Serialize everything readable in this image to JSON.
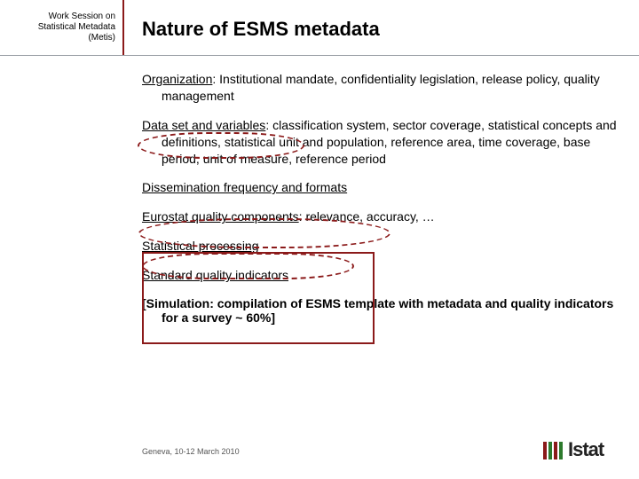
{
  "header": {
    "event_line1": "Work Session on",
    "event_line2": "Statistical Metadata",
    "event_line3": "(Metis)",
    "title": "Nature of ESMS metadata"
  },
  "items": [
    {
      "label": "Organization",
      "sep": ": ",
      "text": "Institutional mandate, confidentiality legislation, release policy, quality management"
    },
    {
      "label": "Data set and variables",
      "sep": ": ",
      "text": "classification system, sector coverage, statistical concepts and definitions, statistical unit and population, reference area, time coverage, base period, unit of measure, reference period"
    },
    {
      "label": "Dissemination frequency and formats",
      "sep": "",
      "text": ""
    },
    {
      "label": "Eurostat quality components",
      "sep": ": ",
      "text": "relevance, accuracy, …"
    },
    {
      "label": "Statistical processing",
      "sep": "",
      "text": ""
    },
    {
      "label": "Standard quality indicators",
      "sep": "",
      "text": ""
    }
  ],
  "simulation": "[Simulation: compilation of ESMS template with metadata and quality indicators for a survey    ~ 60%]",
  "footer": {
    "date_place": "Geneva, 10-12 March 2010",
    "logo_text": "Istat"
  },
  "colors": {
    "accent": "#8b1a1a",
    "rule": "#9aa0a6"
  }
}
